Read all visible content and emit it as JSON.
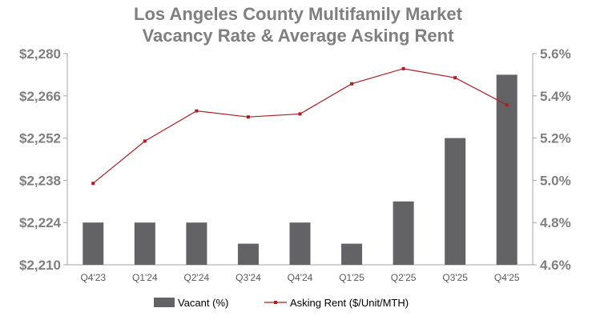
{
  "chart_data": {
    "type": "bar+line",
    "title": [
      "Los Angeles County Multifamily Market",
      "Vacancy Rate & Average Asking Rent"
    ],
    "categories": [
      "Q4'23",
      "Q1'24",
      "Q2'24",
      "Q3'24",
      "Q4'24",
      "Q1'25",
      "Q2'25",
      "Q3'25",
      "Q4'25"
    ],
    "series": [
      {
        "name": "Vacant (%)",
        "type": "bar",
        "axis": "right",
        "color": "#636366",
        "values": [
          4.8,
          4.8,
          4.8,
          4.7,
          4.8,
          4.7,
          4.9,
          5.2,
          5.5
        ]
      },
      {
        "name": "Asking Rent ($/Unit/MTH)",
        "type": "line",
        "axis": "left",
        "color": "#b01c24",
        "values": [
          2237,
          2251,
          2261,
          2259,
          2260,
          2270,
          2275,
          2272,
          2263
        ]
      }
    ],
    "left_axis": {
      "min": 2210,
      "max": 2280,
      "step": 14,
      "ticks": [
        "$2,210",
        "$2,224",
        "$2,238",
        "$2,252",
        "$2,266",
        "$2,280"
      ]
    },
    "right_axis": {
      "min": 4.6,
      "max": 5.6,
      "step": 0.2,
      "ticks": [
        "4.6%",
        "4.8%",
        "5.0%",
        "5.2%",
        "5.4%",
        "5.6%"
      ]
    },
    "grid": false,
    "legend_position": "bottom"
  }
}
